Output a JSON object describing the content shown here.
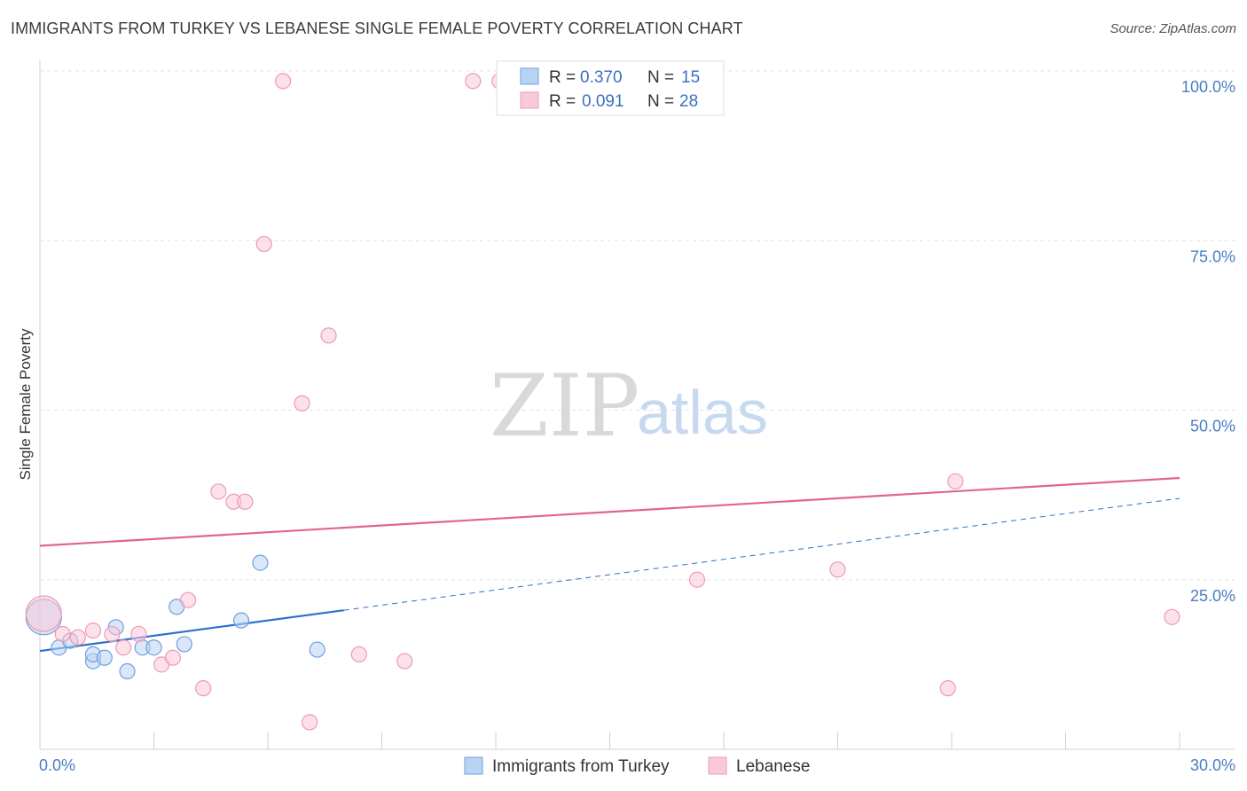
{
  "header": {
    "title": "IMMIGRANTS FROM TURKEY VS LEBANESE SINGLE FEMALE POVERTY CORRELATION CHART",
    "source": "Source: ZipAtlas.com"
  },
  "watermark": {
    "zip": "ZIP",
    "atlas": "atlas"
  },
  "legend": {
    "rows": [
      {
        "r_label": "R =",
        "r_value": "0.370",
        "n_label": "N =",
        "n_value": "15",
        "color": "#a9c8ef"
      },
      {
        "r_label": "R =",
        "r_value": "0.091",
        "n_label": "N =",
        "n_value": "28",
        "color": "#f6b6ca"
      }
    ]
  },
  "chart_data": {
    "type": "scatter",
    "title": "IMMIGRANTS FROM TURKEY VS LEBANESE SINGLE FEMALE POVERTY CORRELATION CHART",
    "xlabel": "",
    "ylabel": "Single Female Poverty",
    "xlim": [
      0,
      30
    ],
    "ylim": [
      0,
      100
    ],
    "x_tick_labels": [
      "0.0%",
      "30.0%"
    ],
    "y_ticks": [
      25,
      50,
      75,
      100
    ],
    "y_tick_labels": [
      "25.0%",
      "50.0%",
      "75.0%",
      "100.0%"
    ],
    "grid": true,
    "legend_position": "top-center",
    "series": [
      {
        "name": "Immigrants from Turkey",
        "color": "#6fa0df",
        "fill": "#b9d3f3",
        "trend_color": "#2e6fcc",
        "trend": {
          "x0": 0,
          "y0": 14.5,
          "x1": 8,
          "y1": 20.5,
          "dash_to_x": 30,
          "dash_to_y": 37
        },
        "points": [
          {
            "x": 0.1,
            "y": 19.5,
            "size": "large"
          },
          {
            "x": 0.5,
            "y": 15
          },
          {
            "x": 1.4,
            "y": 13
          },
          {
            "x": 0.8,
            "y": 16
          },
          {
            "x": 1.4,
            "y": 14
          },
          {
            "x": 1.7,
            "y": 13.5
          },
          {
            "x": 2.0,
            "y": 18
          },
          {
            "x": 2.3,
            "y": 11.5
          },
          {
            "x": 2.7,
            "y": 15
          },
          {
            "x": 3.0,
            "y": 15
          },
          {
            "x": 3.6,
            "y": 21
          },
          {
            "x": 3.8,
            "y": 15.5
          },
          {
            "x": 5.3,
            "y": 19
          },
          {
            "x": 5.8,
            "y": 27.5
          },
          {
            "x": 7.3,
            "y": 14.7
          }
        ]
      },
      {
        "name": "Lebanese",
        "color": "#ee9ab5",
        "fill": "#f9c9d8",
        "trend_color": "#e06590",
        "trend": {
          "x0": 0,
          "y0": 30,
          "x1": 30,
          "y1": 40
        },
        "points": [
          {
            "x": 0.1,
            "y": 20,
            "size": "large"
          },
          {
            "x": 0.6,
            "y": 17
          },
          {
            "x": 1.0,
            "y": 16.5
          },
          {
            "x": 1.4,
            "y": 17.5
          },
          {
            "x": 1.9,
            "y": 17
          },
          {
            "x": 2.2,
            "y": 15
          },
          {
            "x": 2.6,
            "y": 17
          },
          {
            "x": 3.2,
            "y": 12.5
          },
          {
            "x": 3.5,
            "y": 13.5
          },
          {
            "x": 3.9,
            "y": 22
          },
          {
            "x": 4.3,
            "y": 9
          },
          {
            "x": 4.7,
            "y": 38
          },
          {
            "x": 5.1,
            "y": 36.5
          },
          {
            "x": 5.4,
            "y": 36.5
          },
          {
            "x": 5.9,
            "y": 74.5
          },
          {
            "x": 6.4,
            "y": 98.5
          },
          {
            "x": 6.9,
            "y": 51
          },
          {
            "x": 7.1,
            "y": 4
          },
          {
            "x": 7.6,
            "y": 61
          },
          {
            "x": 8.4,
            "y": 14
          },
          {
            "x": 9.6,
            "y": 13
          },
          {
            "x": 11.4,
            "y": 98.5
          },
          {
            "x": 12.1,
            "y": 98.5
          },
          {
            "x": 17.3,
            "y": 25
          },
          {
            "x": 21.0,
            "y": 26.5
          },
          {
            "x": 23.9,
            "y": 9
          },
          {
            "x": 24.1,
            "y": 39.5
          },
          {
            "x": 29.8,
            "y": 19.5
          }
        ]
      }
    ]
  }
}
